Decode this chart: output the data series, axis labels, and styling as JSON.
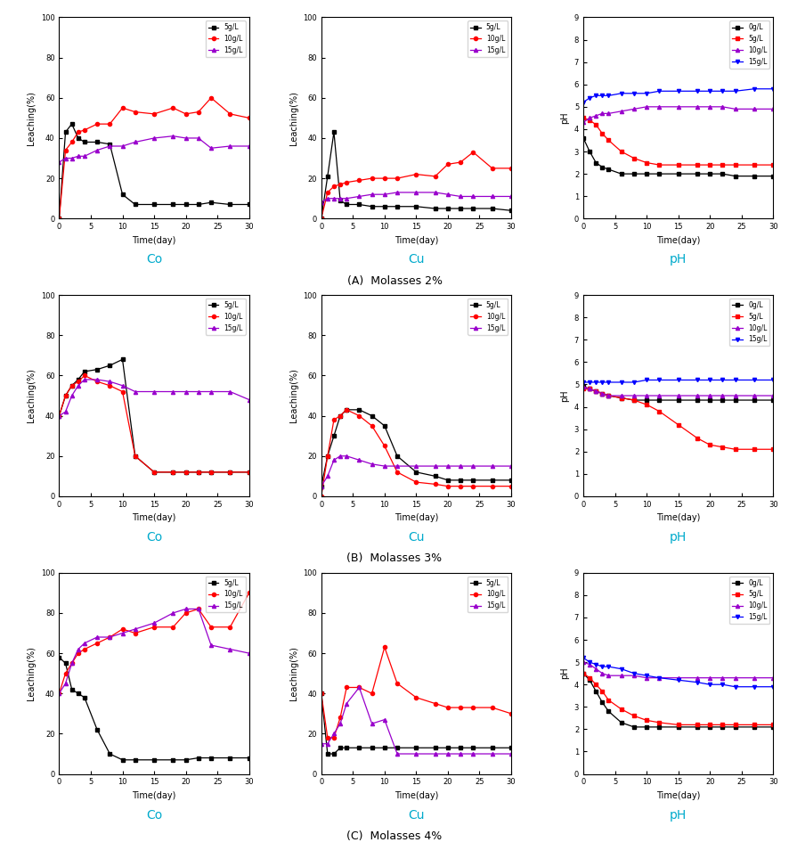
{
  "time_A": [
    0,
    1,
    2,
    3,
    4,
    6,
    8,
    10,
    12,
    15,
    18,
    20,
    22,
    24,
    27,
    30
  ],
  "time_B": [
    0,
    1,
    2,
    3,
    4,
    6,
    8,
    10,
    12,
    15,
    18,
    20,
    22,
    24,
    27,
    30
  ],
  "time_C": [
    0,
    1,
    2,
    3,
    4,
    6,
    8,
    10,
    12,
    15,
    18,
    20,
    22,
    24,
    27,
    30
  ],
  "A_Co_5": [
    0,
    43,
    47,
    40,
    38,
    38,
    37,
    12,
    7,
    7,
    7,
    7,
    7,
    8,
    7,
    7
  ],
  "A_Co_10": [
    0,
    34,
    38,
    43,
    44,
    47,
    47,
    55,
    53,
    52,
    55,
    52,
    53,
    60,
    52,
    50
  ],
  "A_Co_15": [
    28,
    30,
    30,
    31,
    31,
    34,
    36,
    36,
    38,
    40,
    41,
    40,
    40,
    35,
    36,
    36
  ],
  "A_Cu_5": [
    0,
    21,
    43,
    9,
    7,
    7,
    6,
    6,
    6,
    6,
    5,
    5,
    5,
    5,
    5,
    4
  ],
  "A_Cu_10": [
    0,
    13,
    16,
    17,
    18,
    19,
    20,
    20,
    20,
    22,
    21,
    27,
    28,
    33,
    25,
    25
  ],
  "A_Cu_15": [
    8,
    10,
    10,
    10,
    10,
    11,
    12,
    12,
    13,
    13,
    13,
    12,
    11,
    11,
    11,
    11
  ],
  "A_pH_0": [
    3.6,
    3.0,
    2.5,
    2.3,
    2.2,
    2.0,
    2.0,
    2.0,
    2.0,
    2.0,
    2.0,
    2.0,
    2.0,
    1.9,
    1.9,
    1.9
  ],
  "A_pH_5": [
    4.5,
    4.4,
    4.2,
    3.8,
    3.5,
    3.0,
    2.7,
    2.5,
    2.4,
    2.4,
    2.4,
    2.4,
    2.4,
    2.4,
    2.4,
    2.4
  ],
  "A_pH_10": [
    4.3,
    4.5,
    4.6,
    4.7,
    4.7,
    4.8,
    4.9,
    5.0,
    5.0,
    5.0,
    5.0,
    5.0,
    5.0,
    4.9,
    4.9,
    4.9
  ],
  "A_pH_15": [
    5.2,
    5.4,
    5.5,
    5.5,
    5.5,
    5.6,
    5.6,
    5.6,
    5.7,
    5.7,
    5.7,
    5.7,
    5.7,
    5.7,
    5.8,
    5.8
  ],
  "B_Co_5": [
    40,
    50,
    55,
    58,
    62,
    63,
    65,
    68,
    20,
    12,
    12,
    12,
    12,
    12,
    12,
    12
  ],
  "B_Co_10": [
    40,
    50,
    55,
    57,
    60,
    57,
    55,
    52,
    20,
    12,
    12,
    12,
    12,
    12,
    12,
    12
  ],
  "B_Co_15": [
    40,
    42,
    50,
    55,
    58,
    58,
    57,
    55,
    52,
    52,
    52,
    52,
    52,
    52,
    52,
    48
  ],
  "B_Cu_5": [
    5,
    20,
    30,
    40,
    43,
    43,
    40,
    35,
    20,
    12,
    10,
    8,
    8,
    8,
    8,
    8
  ],
  "B_Cu_10": [
    0,
    20,
    38,
    40,
    43,
    40,
    35,
    25,
    12,
    7,
    6,
    5,
    5,
    5,
    5,
    5
  ],
  "B_Cu_15": [
    5,
    10,
    18,
    20,
    20,
    18,
    16,
    15,
    15,
    15,
    15,
    15,
    15,
    15,
    15,
    15
  ],
  "B_pH_0": [
    4.9,
    4.8,
    4.7,
    4.6,
    4.5,
    4.4,
    4.3,
    4.3,
    4.3,
    4.3,
    4.3,
    4.3,
    4.3,
    4.3,
    4.3,
    4.3
  ],
  "B_pH_5": [
    4.8,
    4.8,
    4.7,
    4.6,
    4.5,
    4.4,
    4.3,
    4.1,
    3.8,
    3.2,
    2.6,
    2.3,
    2.2,
    2.1,
    2.1,
    2.1
  ],
  "B_pH_10": [
    4.9,
    4.8,
    4.7,
    4.6,
    4.5,
    4.5,
    4.5,
    4.5,
    4.5,
    4.5,
    4.5,
    4.5,
    4.5,
    4.5,
    4.5,
    4.5
  ],
  "B_pH_15": [
    5.1,
    5.1,
    5.1,
    5.1,
    5.1,
    5.1,
    5.1,
    5.2,
    5.2,
    5.2,
    5.2,
    5.2,
    5.2,
    5.2,
    5.2,
    5.2
  ],
  "C_Co_5": [
    58,
    55,
    42,
    40,
    38,
    22,
    10,
    7,
    7,
    7,
    7,
    7,
    8,
    8,
    8,
    8
  ],
  "C_Co_10": [
    40,
    50,
    55,
    60,
    62,
    65,
    68,
    72,
    70,
    73,
    73,
    80,
    82,
    73,
    73,
    90
  ],
  "C_Co_15": [
    40,
    45,
    55,
    62,
    65,
    68,
    68,
    70,
    72,
    75,
    80,
    82,
    82,
    64,
    62,
    60
  ],
  "C_Cu_5": [
    40,
    10,
    10,
    13,
    13,
    13,
    13,
    13,
    13,
    13,
    13,
    13,
    13,
    13,
    13,
    13
  ],
  "C_Cu_10": [
    40,
    18,
    18,
    28,
    43,
    43,
    40,
    63,
    45,
    38,
    35,
    33,
    33,
    33,
    33,
    30
  ],
  "C_Cu_15": [
    15,
    15,
    20,
    25,
    35,
    43,
    25,
    27,
    10,
    10,
    10,
    10,
    10,
    10,
    10,
    10
  ],
  "C_pH_0": [
    4.5,
    4.2,
    3.7,
    3.2,
    2.8,
    2.3,
    2.1,
    2.1,
    2.1,
    2.1,
    2.1,
    2.1,
    2.1,
    2.1,
    2.1,
    2.1
  ],
  "C_pH_5": [
    4.5,
    4.3,
    4.0,
    3.7,
    3.3,
    2.9,
    2.6,
    2.4,
    2.3,
    2.2,
    2.2,
    2.2,
    2.2,
    2.2,
    2.2,
    2.2
  ],
  "C_pH_10": [
    5.0,
    4.9,
    4.7,
    4.5,
    4.4,
    4.4,
    4.4,
    4.3,
    4.3,
    4.3,
    4.3,
    4.3,
    4.3,
    4.3,
    4.3,
    4.3
  ],
  "C_pH_15": [
    5.2,
    5.0,
    4.9,
    4.8,
    4.8,
    4.7,
    4.5,
    4.4,
    4.3,
    4.2,
    4.1,
    4.0,
    4.0,
    3.9,
    3.9,
    3.9
  ],
  "color_5": "#000000",
  "color_10": "#ff0000",
  "color_15": "#9900cc",
  "color_pH_0": "#000000",
  "color_pH_5": "#ff0000",
  "color_pH_10": "#9900cc",
  "color_pH_15": "#0000ff",
  "label_fontsize": 7,
  "tick_fontsize": 6,
  "legend_fontsize": 5.5,
  "sub_fontsize": 10,
  "cap_fontsize": 9
}
